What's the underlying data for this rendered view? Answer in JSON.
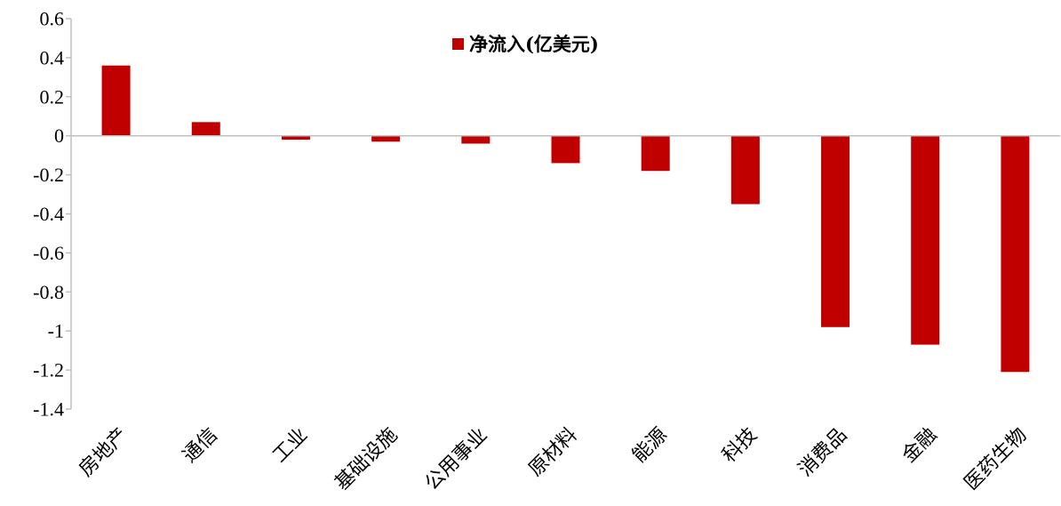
{
  "chart_data": {
    "type": "bar",
    "categories": [
      "房地产",
      "通信",
      "工业",
      "基础设施",
      "公用事业",
      "原材料",
      "能源",
      "科技",
      "消费品",
      "金融",
      "医药生物"
    ],
    "series": [
      {
        "name": "净流入(亿美元)",
        "color": "#C00000",
        "values": [
          0.36,
          0.07,
          -0.02,
          -0.03,
          -0.04,
          -0.14,
          -0.18,
          -0.35,
          -0.98,
          -1.07,
          -1.21
        ]
      }
    ],
    "y_ticks": [
      "0.6",
      "0.4",
      "0.2",
      "0",
      "-0.2",
      "-0.4",
      "-0.6",
      "-0.8",
      "-1",
      "-1.2",
      "-1.4"
    ],
    "ylim": [
      -1.4,
      0.6
    ],
    "y_step": 0.2,
    "title": "",
    "xlabel": "",
    "ylabel": "",
    "grid": false,
    "legend_position": "top-center",
    "axis_color": "#BFBFBF"
  }
}
